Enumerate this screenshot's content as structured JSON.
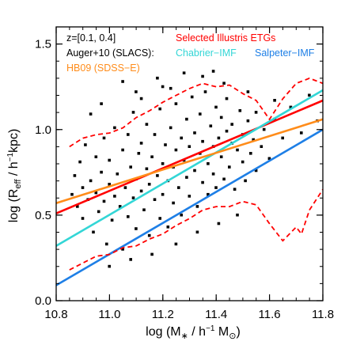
{
  "chart_data": {
    "type": "scatter",
    "xlim": [
      10.8,
      11.8
    ],
    "ylim": [
      0.0,
      1.6
    ],
    "xticks": [
      10.8,
      11.0,
      11.2,
      11.4,
      11.6,
      11.8
    ],
    "xtick_labels": [
      "10.8",
      "11.0",
      "11.2",
      "11.4",
      "11.6",
      "11.8"
    ],
    "yticks": [
      0.0,
      0.5,
      1.0,
      1.5
    ],
    "ytick_labels": [
      "0.0",
      "0.5",
      "1.0",
      "1.5"
    ],
    "xlabel": "log (M∗ / h⁻¹ M⊙)",
    "ylabel": "log (R_eff / h⁻¹kpc)",
    "annotations": {
      "redshift": "z=[0.1, 0.4]",
      "selected": "Selected Illustris ETGs",
      "auger": "Auger+10 (SLACS):",
      "chabrier": "Chabrier−IMF",
      "salpeter": "Salpeter−IMF",
      "hb09": "HB09 (SDSS−E)"
    },
    "colors": {
      "points": "#000000",
      "illustris": "#ff0000",
      "chabrier": "#33d6d6",
      "salpeter": "#1e7fe6",
      "hb09": "#ff8c1a"
    },
    "grid": false,
    "series": [
      {
        "name": "Selected Illustris ETGs",
        "style": "solid",
        "color_key": "illustris",
        "x": [
          10.8,
          11.8
        ],
        "y": [
          0.51,
          1.17
        ]
      },
      {
        "name": "Chabrier−IMF",
        "style": "solid",
        "color_key": "chabrier",
        "x": [
          10.8,
          11.8
        ],
        "y": [
          0.32,
          1.23
        ]
      },
      {
        "name": "Salpeter−IMF",
        "style": "solid",
        "color_key": "salpeter",
        "x": [
          10.8,
          11.8
        ],
        "y": [
          0.09,
          1.0
        ]
      },
      {
        "name": "HB09 (SDSS−E)",
        "style": "solid",
        "color_key": "hb09",
        "x": [
          10.8,
          11.8
        ],
        "y": [
          0.57,
          1.06
        ]
      },
      {
        "name": "Illustris upper envelope",
        "style": "dashed",
        "color_key": "illustris",
        "x": [
          10.85,
          10.9,
          10.95,
          11.0,
          11.05,
          11.1,
          11.15,
          11.2,
          11.25,
          11.3,
          11.35,
          11.4,
          11.45,
          11.5,
          11.55,
          11.6,
          11.65,
          11.7,
          11.75,
          11.8
        ],
        "y": [
          0.9,
          0.95,
          0.97,
          0.98,
          1.01,
          1.07,
          1.11,
          1.16,
          1.2,
          1.24,
          1.27,
          1.25,
          1.26,
          1.21,
          1.17,
          1.06,
          1.18,
          1.27,
          1.3,
          1.27
        ]
      },
      {
        "name": "Illustris lower envelope",
        "style": "dashed",
        "color_key": "illustris",
        "x": [
          10.85,
          10.9,
          10.95,
          11.0,
          11.05,
          11.1,
          11.15,
          11.2,
          11.25,
          11.3,
          11.35,
          11.4,
          11.45,
          11.5,
          11.55,
          11.6,
          11.65,
          11.7,
          11.72,
          11.75,
          11.8
        ],
        "y": [
          0.18,
          0.22,
          0.26,
          0.27,
          0.31,
          0.32,
          0.36,
          0.39,
          0.44,
          0.48,
          0.53,
          0.55,
          0.55,
          0.58,
          0.56,
          0.45,
          0.35,
          0.43,
          0.39,
          0.53,
          0.65
        ]
      }
    ],
    "scatter_points": [
      [
        10.86,
        0.62
      ],
      [
        10.87,
        0.73
      ],
      [
        10.88,
        0.55
      ],
      [
        10.89,
        0.81
      ],
      [
        10.9,
        0.66
      ],
      [
        10.9,
        0.48
      ],
      [
        10.91,
        0.91
      ],
      [
        10.92,
        0.59
      ],
      [
        10.93,
        0.7
      ],
      [
        10.94,
        0.4
      ],
      [
        10.95,
        0.84
      ],
      [
        10.95,
        0.63
      ],
      [
        10.96,
        0.52
      ],
      [
        10.97,
        0.75
      ],
      [
        10.98,
        0.95
      ],
      [
        10.98,
        0.58
      ],
      [
        10.99,
        0.33
      ],
      [
        11.0,
        0.68
      ],
      [
        11.0,
        0.82
      ],
      [
        11.01,
        0.47
      ],
      [
        11.02,
        0.61
      ],
      [
        11.02,
        1.01
      ],
      [
        11.03,
        0.74
      ],
      [
        11.04,
        0.55
      ],
      [
        11.05,
        0.88
      ],
      [
        11.05,
        0.3
      ],
      [
        11.06,
        0.66
      ],
      [
        11.07,
        0.97
      ],
      [
        11.07,
        0.49
      ],
      [
        11.08,
        0.78
      ],
      [
        11.09,
        0.6
      ],
      [
        11.09,
        1.1
      ],
      [
        11.1,
        0.71
      ],
      [
        11.1,
        0.42
      ],
      [
        11.11,
        0.86
      ],
      [
        11.12,
        0.64
      ],
      [
        11.12,
        0.92
      ],
      [
        11.13,
        0.53
      ],
      [
        11.14,
        0.77
      ],
      [
        11.14,
        1.03
      ],
      [
        11.15,
        0.68
      ],
      [
        11.15,
        0.38
      ],
      [
        11.16,
        0.84
      ],
      [
        11.17,
        0.59
      ],
      [
        11.17,
        0.97
      ],
      [
        11.18,
        0.73
      ],
      [
        11.19,
        0.48
      ],
      [
        11.19,
        1.12
      ],
      [
        11.2,
        0.8
      ],
      [
        11.2,
        0.62
      ],
      [
        11.21,
        0.91
      ],
      [
        11.22,
        0.7
      ],
      [
        11.22,
        0.43
      ],
      [
        11.23,
        1.01
      ],
      [
        11.24,
        0.78
      ],
      [
        11.24,
        0.57
      ],
      [
        11.25,
        0.88
      ],
      [
        11.25,
        1.15
      ],
      [
        11.26,
        0.66
      ],
      [
        11.27,
        0.95
      ],
      [
        11.27,
        0.5
      ],
      [
        11.28,
        0.82
      ],
      [
        11.29,
        1.06
      ],
      [
        11.29,
        0.72
      ],
      [
        11.3,
        0.61
      ],
      [
        11.3,
        0.9
      ],
      [
        11.31,
        1.19
      ],
      [
        11.32,
        0.76
      ],
      [
        11.32,
        0.98
      ],
      [
        11.33,
        0.55
      ],
      [
        11.34,
        0.86
      ],
      [
        11.34,
        1.09
      ],
      [
        11.35,
        0.69
      ],
      [
        11.35,
        0.93
      ],
      [
        11.36,
        1.22
      ],
      [
        11.37,
        0.8
      ],
      [
        11.37,
        0.62
      ],
      [
        11.38,
        1.02
      ],
      [
        11.39,
        0.74
      ],
      [
        11.39,
        0.9
      ],
      [
        11.4,
        1.13
      ],
      [
        11.4,
        0.66
      ],
      [
        11.41,
        0.95
      ],
      [
        11.42,
        0.84
      ],
      [
        11.42,
        1.07
      ],
      [
        11.43,
        0.71
      ],
      [
        11.44,
        0.99
      ],
      [
        11.44,
        1.18
      ],
      [
        11.45,
        0.78
      ],
      [
        11.46,
        0.92
      ],
      [
        11.46,
        1.03
      ],
      [
        11.47,
        0.65
      ],
      [
        11.48,
        0.88
      ],
      [
        11.49,
        1.11
      ],
      [
        11.5,
        0.81
      ],
      [
        11.5,
        0.97
      ],
      [
        11.51,
        0.7
      ],
      [
        11.52,
        1.05
      ],
      [
        11.53,
        0.86
      ],
      [
        11.54,
        0.94
      ],
      [
        11.55,
        0.76
      ],
      [
        11.55,
        1.1
      ],
      [
        11.57,
        0.9
      ],
      [
        11.58,
        1.0
      ],
      [
        11.6,
        0.83
      ],
      [
        11.62,
        1.06
      ],
      [
        11.65,
        0.95
      ],
      [
        11.68,
        1.13
      ],
      [
        11.72,
        0.98
      ],
      [
        11.75,
        1.2
      ],
      [
        11.78,
        1.05
      ],
      [
        11.05,
        1.28
      ],
      [
        11.1,
        1.22
      ],
      [
        11.18,
        1.3
      ],
      [
        11.23,
        1.24
      ],
      [
        11.28,
        1.33
      ],
      [
        11.35,
        1.31
      ],
      [
        11.43,
        1.27
      ],
      [
        11.0,
        0.2
      ],
      [
        11.08,
        0.24
      ],
      [
        11.16,
        0.27
      ],
      [
        11.25,
        0.33
      ],
      [
        11.33,
        0.4
      ],
      [
        11.41,
        0.45
      ],
      [
        11.48,
        0.5
      ],
      [
        10.93,
        1.09
      ],
      [
        10.97,
        1.15
      ],
      [
        11.12,
        1.18
      ],
      [
        11.2,
        1.25
      ],
      [
        11.39,
        1.34
      ],
      [
        11.52,
        1.22
      ],
      [
        11.62,
        1.17
      ]
    ]
  }
}
